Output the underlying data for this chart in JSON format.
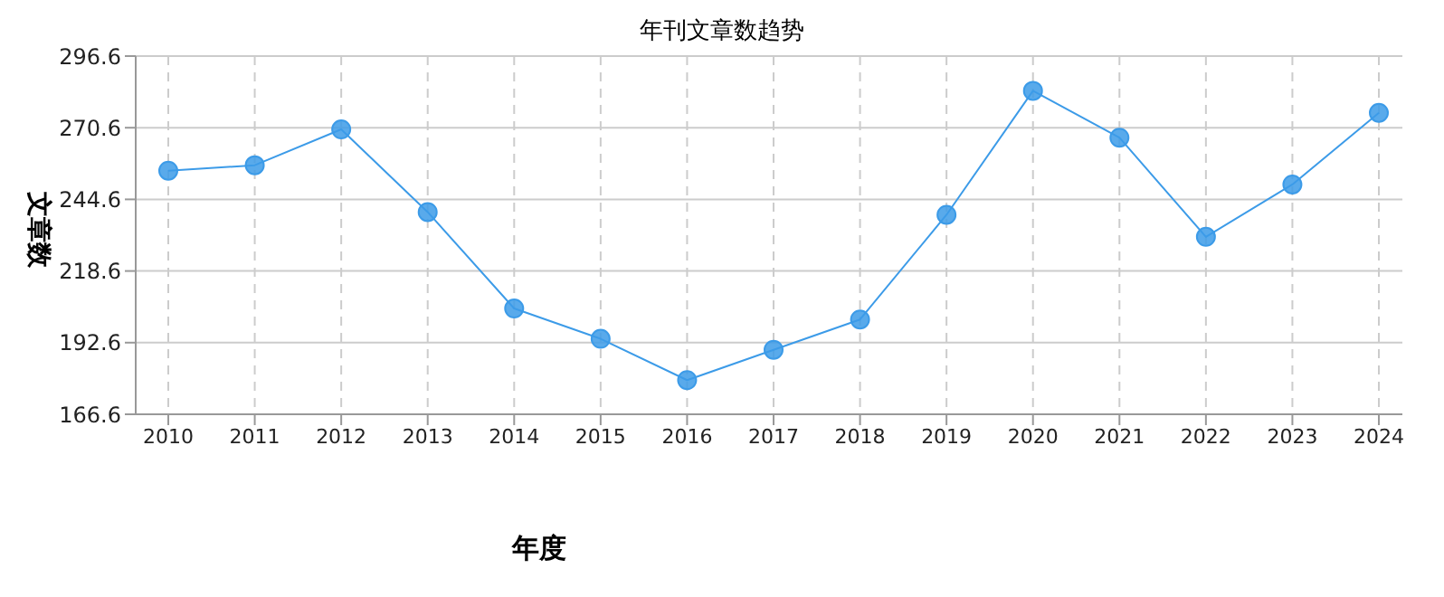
{
  "chart_data": {
    "type": "line",
    "title": "年刊文章数趋势",
    "xlabel": "年度",
    "ylabel": "文章数",
    "categories": [
      "2010",
      "2011",
      "2012",
      "2013",
      "2014",
      "2015",
      "2016",
      "2017",
      "2018",
      "2019",
      "2020",
      "2021",
      "2022",
      "2023",
      "2024"
    ],
    "series": [
      {
        "color": "#3c9be8",
        "values": [
          255,
          257,
          270,
          240,
          205,
          194,
          179,
          190,
          201,
          239,
          284,
          267,
          231,
          250,
          276
        ]
      }
    ],
    "ylim": [
      166.6,
      296.6
    ],
    "yticks": [
      166.6,
      192.6,
      218.6,
      244.6,
      270.6,
      296.6
    ],
    "grid": true,
    "marker": "circle",
    "line_style": "solid",
    "legend": false
  }
}
